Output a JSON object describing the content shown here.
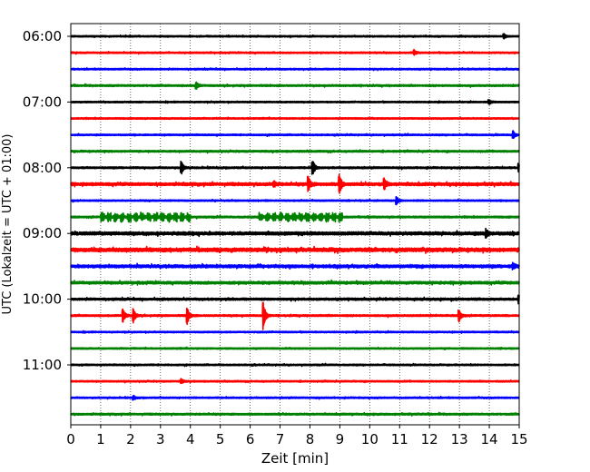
{
  "chart_data": {
    "type": "line",
    "title": "",
    "xlabel": "Zeit  [min]",
    "ylabel": "UTC (Lokalzeit = UTC + 01:00)",
    "xlim": [
      0,
      15
    ],
    "x_ticks": [
      "0",
      "1",
      "2",
      "3",
      "4",
      "5",
      "6",
      "7",
      "8",
      "9",
      "10",
      "11",
      "12",
      "13",
      "14",
      "15"
    ],
    "y_tick_labels": [
      "06:00",
      "07:00",
      "08:00",
      "09:00",
      "10:00",
      "11:00"
    ],
    "row_interval_min": 15,
    "grid": "vertical dotted lines at each minute",
    "series": [
      {
        "time": "06:00",
        "color": "#000000",
        "events": [
          [
            14.5,
            0.25
          ]
        ],
        "noise": 0.1
      },
      {
        "time": "06:15",
        "color": "#ff0000",
        "events": [
          [
            11.5,
            0.25
          ]
        ],
        "noise": 0.1
      },
      {
        "time": "06:30",
        "color": "#0000ff",
        "events": [],
        "noise": 0.1
      },
      {
        "time": "06:45",
        "color": "#008000",
        "events": [
          [
            4.2,
            0.4
          ]
        ],
        "noise": 0.12
      },
      {
        "time": "07:00",
        "color": "#000000",
        "events": [
          [
            14.0,
            0.25
          ]
        ],
        "noise": 0.1
      },
      {
        "time": "07:15",
        "color": "#ff0000",
        "events": [],
        "noise": 0.1
      },
      {
        "time": "07:30",
        "color": "#0000ff",
        "events": [
          [
            14.8,
            0.45
          ]
        ],
        "noise": 0.1
      },
      {
        "time": "07:45",
        "color": "#008000",
        "events": [],
        "noise": 0.12
      },
      {
        "time": "08:00",
        "color": "#000000",
        "events": [
          [
            3.7,
            0.8
          ],
          [
            8.1,
            0.9
          ],
          [
            15.0,
            0.5
          ]
        ],
        "noise": 0.12
      },
      {
        "time": "08:15",
        "color": "#ff0000",
        "events": [
          [
            7.95,
            0.9
          ],
          [
            9.0,
            1.1
          ],
          [
            10.5,
            0.6
          ],
          [
            6.8,
            0.35
          ]
        ],
        "noise": 0.2
      },
      {
        "time": "08:30",
        "color": "#0000ff",
        "events": [
          [
            10.9,
            0.45
          ]
        ],
        "noise": 0.1
      },
      {
        "time": "08:45",
        "color": "#008000",
        "events": [],
        "noise": 0.12,
        "bursts": [
          [
            1.0,
            4.0,
            0.55
          ],
          [
            6.3,
            9.1,
            0.55
          ]
        ]
      },
      {
        "time": "09:00",
        "color": "#000000",
        "events": [
          [
            13.9,
            0.45
          ]
        ],
        "noise": 0.22
      },
      {
        "time": "09:15",
        "color": "#ff0000",
        "events": [],
        "noise": 0.25
      },
      {
        "time": "09:30",
        "color": "#0000ff",
        "events": [
          [
            14.8,
            0.3
          ]
        ],
        "noise": 0.2
      },
      {
        "time": "09:45",
        "color": "#008000",
        "events": [],
        "noise": 0.18
      },
      {
        "time": "10:00",
        "color": "#000000",
        "events": [
          [
            15.0,
            0.45
          ]
        ],
        "noise": 0.15
      },
      {
        "time": "10:15",
        "color": "#ff0000",
        "events": [
          [
            1.75,
            0.9
          ],
          [
            2.1,
            0.8
          ],
          [
            3.9,
            1.0
          ],
          [
            6.45,
            1.6
          ],
          [
            13.0,
            0.7
          ]
        ],
        "noise": 0.12
      },
      {
        "time": "10:30",
        "color": "#0000ff",
        "events": [],
        "noise": 0.1
      },
      {
        "time": "10:45",
        "color": "#008000",
        "events": [],
        "noise": 0.1
      },
      {
        "time": "11:00",
        "color": "#000000",
        "events": [],
        "noise": 0.1
      },
      {
        "time": "11:15",
        "color": "#ff0000",
        "events": [
          [
            3.7,
            0.25
          ]
        ],
        "noise": 0.1
      },
      {
        "time": "11:30",
        "color": "#0000ff",
        "events": [
          [
            2.1,
            0.25
          ]
        ],
        "noise": 0.1
      },
      {
        "time": "11:45",
        "color": "#008000",
        "events": [],
        "noise": 0.12
      }
    ]
  }
}
